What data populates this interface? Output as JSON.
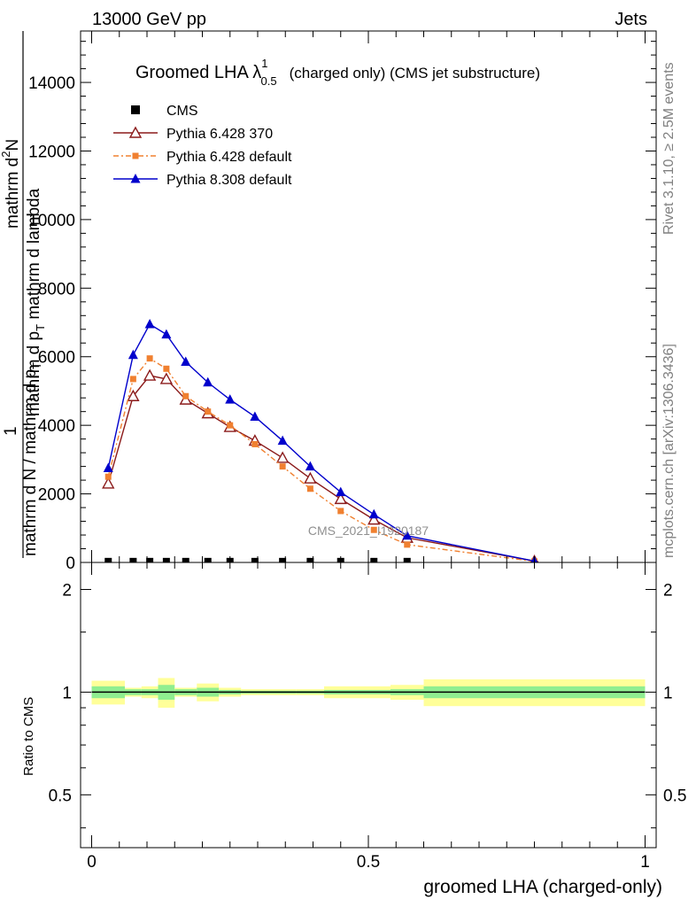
{
  "header": {
    "left": "13000 GeV pp",
    "right": "Jets"
  },
  "side": {
    "rivet": "Rivet 3.1.10, ≥ 2.5M events",
    "mcplots": "mcplots.cern.ch [arXiv:1306.3436]"
  },
  "watermark": "CMS_2021_I1920187",
  "chart_data": [
    {
      "type": "line",
      "title": "Groomed LHA λ",
      "title_sup": "1",
      "title_sub": "0.5",
      "title_suffix": "(charged only) (CMS jet substructure)",
      "ylabel_top": "mathrm d",
      "ylabel_top_sup": "2",
      "ylabel_top_rest": "N",
      "ylabel_bottom_pre": "mathrm d p",
      "ylabel_bottom_sub": "T",
      "ylabel_bottom_rest": " mathrm d lambda",
      "ylabel_outer_top": "1",
      "ylabel_outer_bottom_pre": "mathrm d N / mathrm d p",
      "ylabel_outer_bottom_sub": "T",
      "xlim": [
        -0.02,
        1.02
      ],
      "ylim": [
        0,
        15500
      ],
      "yticks": [
        0,
        2000,
        4000,
        6000,
        8000,
        10000,
        12000,
        14000
      ],
      "ytick_labels": [
        "0",
        "2000",
        "4000",
        "6000",
        "8000",
        "10000",
        "12000",
        "14000"
      ],
      "legend": "top-left",
      "series": [
        {
          "name": "CMS",
          "color": "#000000",
          "marker": "square",
          "x": [
            0.03,
            0.075,
            0.105,
            0.135,
            0.17,
            0.21,
            0.25,
            0.295,
            0.345,
            0.395,
            0.45,
            0.51,
            0.57
          ],
          "y": [
            30,
            30,
            30,
            30,
            30,
            30,
            30,
            30,
            30,
            30,
            30,
            30,
            30
          ]
        },
        {
          "name": "Pythia 6.428 370",
          "color": "#8b1a1a",
          "marker": "triangle-open",
          "dash": "",
          "x": [
            0.03,
            0.075,
            0.105,
            0.135,
            0.17,
            0.21,
            0.25,
            0.295,
            0.345,
            0.395,
            0.45,
            0.51,
            0.57,
            0.8
          ],
          "y": [
            2300,
            4850,
            5450,
            5350,
            4750,
            4350,
            3950,
            3550,
            3050,
            2450,
            1850,
            1250,
            720,
            40
          ]
        },
        {
          "name": "Pythia 6.428 default",
          "color": "#f08030",
          "marker": "square-small",
          "dash": "6,3,2,3",
          "x": [
            0.03,
            0.075,
            0.105,
            0.135,
            0.17,
            0.21,
            0.25,
            0.295,
            0.345,
            0.395,
            0.45,
            0.51,
            0.57,
            0.8
          ],
          "y": [
            2500,
            5350,
            5950,
            5650,
            4850,
            4400,
            4000,
            3450,
            2800,
            2150,
            1500,
            950,
            520,
            30
          ]
        },
        {
          "name": "Pythia 8.308 default",
          "color": "#0000cc",
          "marker": "triangle-filled",
          "dash": "",
          "x": [
            0.03,
            0.075,
            0.105,
            0.135,
            0.17,
            0.21,
            0.25,
            0.295,
            0.345,
            0.395,
            0.45,
            0.51,
            0.57,
            0.8
          ],
          "y": [
            2750,
            6050,
            6950,
            6650,
            5850,
            5250,
            4750,
            4250,
            3550,
            2800,
            2050,
            1400,
            780,
            40
          ]
        }
      ]
    },
    {
      "type": "area",
      "ylabel": "Ratio to CMS",
      "xlabel": "groomed LHA (charged-only)",
      "xlim": [
        -0.02,
        1.02
      ],
      "ylim": [
        0.35,
        2.4
      ],
      "log_y": true,
      "yticks": [
        0.5,
        1,
        2
      ],
      "ytick_labels": [
        "0.5",
        "1",
        "2"
      ],
      "xticks": [
        0,
        0.5,
        1
      ],
      "xtick_labels": [
        "0",
        "0.5",
        "1"
      ],
      "reference": 1,
      "bins": [
        {
          "x0": 0.0,
          "x1": 0.06,
          "inner": 0.04,
          "outer": 0.08
        },
        {
          "x0": 0.06,
          "x1": 0.09,
          "inner": 0.02,
          "outer": 0.03
        },
        {
          "x0": 0.09,
          "x1": 0.12,
          "inner": 0.02,
          "outer": 0.04
        },
        {
          "x0": 0.12,
          "x1": 0.15,
          "inner": 0.05,
          "outer": 0.1
        },
        {
          "x0": 0.15,
          "x1": 0.19,
          "inner": 0.02,
          "outer": 0.03
        },
        {
          "x0": 0.19,
          "x1": 0.23,
          "inner": 0.03,
          "outer": 0.06
        },
        {
          "x0": 0.23,
          "x1": 0.27,
          "inner": 0.015,
          "outer": 0.03
        },
        {
          "x0": 0.27,
          "x1": 0.32,
          "inner": 0.01,
          "outer": 0.02
        },
        {
          "x0": 0.32,
          "x1": 0.37,
          "inner": 0.01,
          "outer": 0.02
        },
        {
          "x0": 0.37,
          "x1": 0.42,
          "inner": 0.01,
          "outer": 0.02
        },
        {
          "x0": 0.42,
          "x1": 0.48,
          "inner": 0.015,
          "outer": 0.04
        },
        {
          "x0": 0.48,
          "x1": 0.54,
          "inner": 0.015,
          "outer": 0.04
        },
        {
          "x0": 0.54,
          "x1": 0.6,
          "inner": 0.02,
          "outer": 0.05
        },
        {
          "x0": 0.6,
          "x1": 1.0,
          "inner": 0.04,
          "outer": 0.09
        }
      ]
    }
  ]
}
